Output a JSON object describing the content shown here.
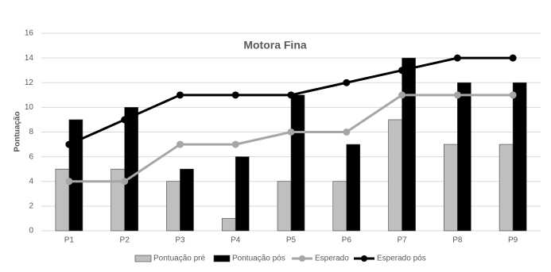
{
  "chart_data": {
    "type": "bar",
    "title": "Motora Fina",
    "y_label": "Pontuação",
    "categories": [
      "P1",
      "P2",
      "P3",
      "P4",
      "P5",
      "P6",
      "P7",
      "P8",
      "P9"
    ],
    "series": [
      {
        "name": "Pontuação pré",
        "type": "bar",
        "color": "#bfbfbf",
        "values": [
          5,
          5,
          4,
          1,
          4,
          4,
          9,
          7,
          7
        ]
      },
      {
        "name": "Pontuação pós",
        "type": "bar",
        "color": "#000000",
        "values": [
          9,
          10,
          5,
          6,
          11,
          7,
          14,
          12,
          12
        ]
      },
      {
        "name": "Esperado",
        "type": "line",
        "color": "#a6a6a6",
        "values": [
          4,
          4,
          7,
          7,
          8,
          8,
          11,
          11,
          11
        ]
      },
      {
        "name": "Esperado pós",
        "type": "line",
        "color": "#000000",
        "values": [
          7,
          9,
          11,
          11,
          11,
          12,
          13,
          14,
          14
        ]
      }
    ],
    "ylim": [
      0,
      16
    ],
    "yticks": [
      0,
      2,
      4,
      6,
      8,
      10,
      12,
      14,
      16
    ],
    "grid": true,
    "legend": "bottom"
  }
}
